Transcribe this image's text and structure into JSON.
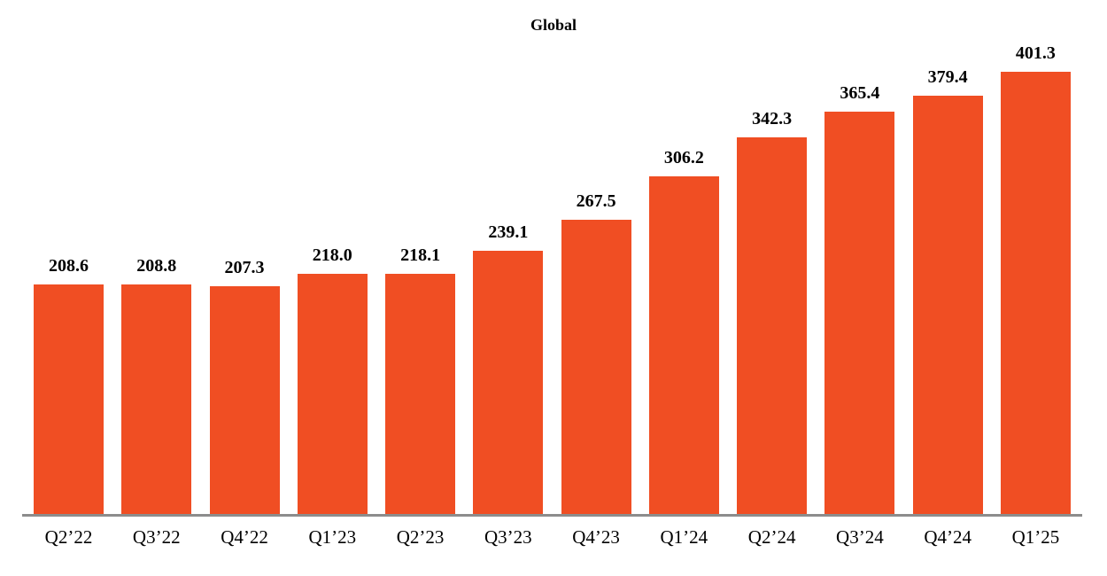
{
  "colors": {
    "bar": "#F04E23",
    "axis": "#8C8C8C",
    "text": "#000000",
    "background": "#FFFFFF"
  },
  "chart_data": {
    "type": "bar",
    "title": "Global",
    "categories": [
      "Q2’22",
      "Q3’22",
      "Q4’22",
      "Q1’23",
      "Q2’23",
      "Q3’23",
      "Q4’23",
      "Q1’24",
      "Q2’24",
      "Q3’24",
      "Q4’24",
      "Q1’25"
    ],
    "values": [
      208.6,
      208.8,
      207.3,
      218.0,
      218.1,
      239.1,
      267.5,
      306.2,
      342.3,
      365.4,
      379.4,
      401.3
    ],
    "value_labels": [
      "208.6",
      "208.8",
      "207.3",
      "218.0",
      "218.1",
      "239.1",
      "267.5",
      "306.2",
      "342.3",
      "365.4",
      "379.4",
      "401.3"
    ],
    "value_labels_position": "above bars",
    "xlabel": "",
    "ylabel": "",
    "ylim": [
      0,
      420
    ],
    "grid": false,
    "legend": false,
    "y_axis_visible": false,
    "baseline": "zero"
  }
}
